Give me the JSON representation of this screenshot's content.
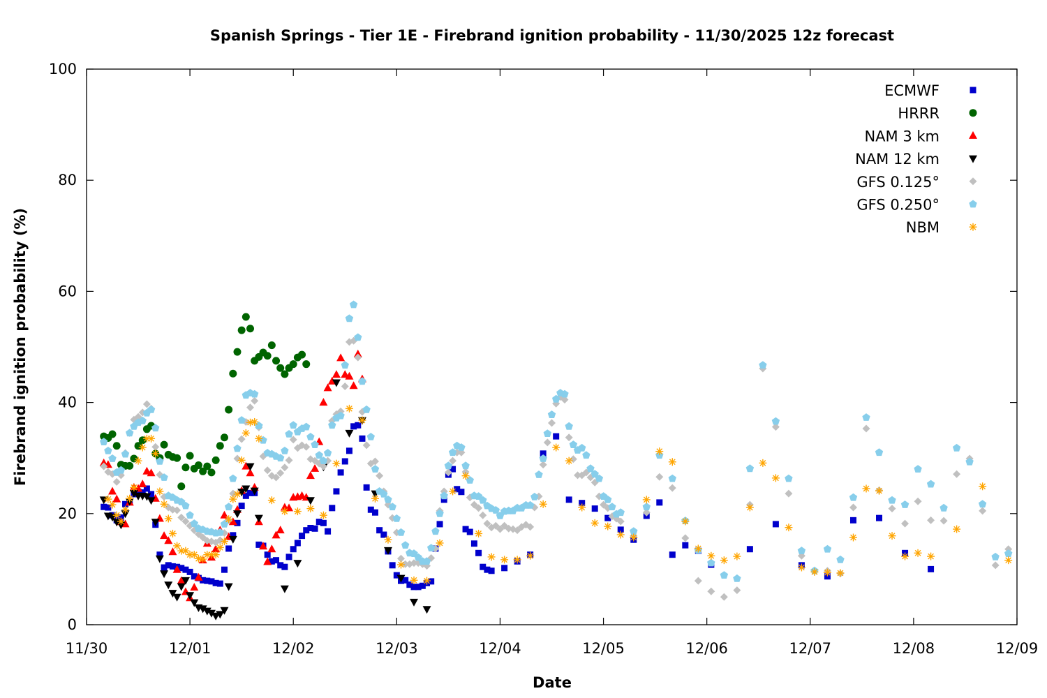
{
  "chart_data": {
    "type": "scatter",
    "title": "Spanish Springs - Tier 1E - Firebrand ignition probability - 11/30/2025 12z forecast",
    "xlabel": "Date",
    "ylabel": "Firebrand ignition probability (%)",
    "xlim": [
      "11/30 00:00",
      "12/09 00:00"
    ],
    "ylim": [
      0,
      100
    ],
    "x_ticks": [
      "11/30",
      "12/01",
      "12/02",
      "12/03",
      "12/04",
      "12/05",
      "12/06",
      "12/07",
      "12/08",
      "12/09"
    ],
    "y_ticks": [
      0,
      20,
      40,
      60,
      80,
      100
    ],
    "grid": false,
    "legend_placement": "top-right",
    "series": [
      {
        "name": "ECMWF",
        "marker": "square",
        "color": "#0000cc",
        "segments": [
          {
            "start": "11/30 04:00",
            "step_hours": 1,
            "values": [
              21.2,
              21.1,
              19.7,
              18.8,
              19.3,
              21.7,
              22.2,
              23.5,
              23.9,
              23.8,
              24.5,
              23.5,
              18.0,
              12.6,
              10.3,
              10.7,
              10.5,
              10.4,
              10.2,
              9.9,
              9.5,
              8.7,
              8.4,
              8.0,
              7.9,
              7.8,
              7.5,
              7.4,
              9.9,
              13.7,
              16.1,
              18.3,
              21.4,
              23.2,
              23.7,
              23.7,
              14.4,
              14.2,
              12.6,
              11.4,
              11.6,
              10.7,
              10.4,
              12.2,
              13.6,
              14.7,
              16.0,
              17.0,
              17.4,
              17.3,
              18.5,
              18.3,
              16.8,
              21.0,
              24.0,
              27.4,
              29.4,
              31.3,
              35.7,
              35.9,
              33.5,
              24.7,
              20.7,
              20.2,
              17.0,
              16.2,
              13.2,
              10.7,
              8.9,
              7.9,
              8.0,
              7.2,
              6.8,
              6.8,
              7.0,
              7.5,
              7.8,
              13.7,
              18.1,
              22.5,
              27.0,
              28.0,
              24.4,
              23.9,
              17.2,
              16.7,
              14.6,
              12.9,
              10.4,
              9.9,
              9.7
            ]
          },
          {
            "start": "12/04 01:00",
            "step_hours": 3,
            "values": [
              10.2,
              11.4,
              12.6,
              30.8,
              33.9,
              22.5,
              21.9,
              20.9,
              19.2,
              17.1,
              15.3,
              19.6,
              22.0,
              12.6,
              14.3,
              13.3,
              10.8
            ]
          },
          {
            "start": "12/06 10:00",
            "step_hours": 6,
            "values": [
              13.6,
              18.1,
              10.7,
              8.7,
              18.8,
              19.2,
              12.9,
              10.0
            ]
          }
        ]
      },
      {
        "name": "HRRR",
        "marker": "circle",
        "color": "#006400",
        "segments": [
          {
            "start": "11/30 04:00",
            "step_hours": 1,
            "values": [
              33.9,
              33.6,
              34.3,
              32.2,
              28.8,
              28.6,
              28.6,
              29.9,
              32.2,
              33.2,
              35.2,
              35.8,
              30.8,
              30.0,
              32.4,
              30.6,
              30.2,
              30.0,
              24.9,
              28.3,
              30.4,
              28.1,
              28.7,
              27.6,
              28.5,
              27.4,
              29.6,
              32.2,
              33.7,
              38.7,
              45.2,
              49.1,
              53.0,
              55.4,
              53.3,
              47.5,
              48.2,
              49.0,
              48.4,
              50.3,
              47.5,
              46.2,
              45.1,
              46.2,
              46.9,
              48.1,
              48.6,
              46.9
            ]
          }
        ]
      },
      {
        "name": "NAM 3 km",
        "marker": "triangle-up",
        "color": "#ff0000",
        "segments": [
          {
            "start": "11/30 04:00",
            "step_hours": 1,
            "values": [
              29.1,
              28.8,
              24.0,
              22.6,
              18.5,
              18.1,
              22.0,
              24.7,
              24.5,
              25.3,
              27.6,
              27.3,
              22.7,
              19.1,
              16.0,
              15.1,
              13.1,
              9.9,
              7.9,
              5.9,
              4.8,
              6.7,
              8.5,
              11.6,
              14.6,
              12.1,
              13.6,
              17.0,
              19.7,
              15.8,
              18.5,
              20.7,
              24.1,
              28.5,
              27.3,
              24.7,
              18.5,
              14.1,
              11.3,
              13.6,
              16.1,
              17.0,
              21.1,
              21.0,
              22.9,
              23.0,
              23.2,
              22.9,
              26.8,
              28.1,
              32.9,
              40.0,
              42.6,
              43.8,
              45.0,
              48.0,
              45.0,
              44.7,
              43.0,
              48.7,
              44.2
            ]
          }
        ]
      },
      {
        "name": "NAM 12 km",
        "marker": "triangle-down",
        "color": "#000000",
        "segments": [
          {
            "start": "11/30 04:00",
            "step_hours": 1,
            "values": [
              22.5,
              19.6,
              19.4,
              18.5,
              18.0,
              20.0,
              22.2,
              23.7,
              23.2,
              23.2,
              23.1,
              22.4,
              18.5,
              11.9,
              9.2,
              7.2,
              5.7,
              5.0,
              6.9,
              8.0,
              5.3,
              4.0,
              3.1,
              2.9,
              2.5,
              2.1,
              1.6,
              1.9,
              2.6,
              6.9,
              15.4,
              20.0,
              23.9,
              24.5,
              28.5,
              24.1,
              19.2
            ]
          },
          {
            "start": "12/01 19:00",
            "step_hours": 3,
            "values": [
              null,
              6.5,
              11.1,
              22.4,
              28.4,
              43.6,
              34.5,
              36.8,
              23.6,
              13.4,
              8.4,
              4.1,
              2.8
            ]
          }
        ]
      },
      {
        "name": "GFS 0.125°",
        "marker": "diamond",
        "color": "#c0c0c0",
        "segments": [
          {
            "start": "11/30 04:00",
            "step_hours": 1,
            "values": [
              28.5,
              27.5,
              27.1,
              25.7,
              26.9,
              30.9,
              34.5,
              36.9,
              37.4,
              38.2,
              39.7,
              38.9,
              32.0,
              27.0,
              23.0,
              21.1,
              20.7,
              20.6,
              19.3,
              18.6,
              17.8,
              17.0,
              16.3,
              15.7,
              15.1,
              15.0,
              14.8,
              15.2,
              16.5,
              18.8,
              23.6,
              29.9,
              33.4,
              36.5,
              39.1,
              40.3,
              35.5,
              30.3,
              27.8,
              26.8,
              26.5,
              27.3,
              28.3,
              29.6,
              33.3,
              31.8,
              32.3,
              32.0,
              29.8,
              29.5,
              29.0,
              28.5,
              29.5,
              36.7,
              37.9,
              38.4,
              42.9,
              50.9,
              51.1,
              48.1,
              38.3,
              32.3,
              29.0,
              29.4,
              26.8,
              24.0,
              21.6,
              19.2,
              16.6,
              11.9,
              10.9,
              10.9,
              11.1,
              11.1,
              10.9,
              10.6,
              12.0,
              13.7,
              20.5,
              24.0,
              27.4,
              29.5,
              31.0,
              31.0,
              27.5,
              22.9,
              21.6,
              21.0,
              19.7,
              18.2,
              17.5,
              17.8,
              17.2,
              17.8,
              17.3,
              17.2,
              17.0,
              17.6,
              18.0,
              17.6,
              21.1,
              23.1,
              28.8,
              32.8,
              36.3,
              39.8,
              41.0,
              40.5,
              33.7,
              29.8,
              26.9,
              26.9,
              27.4,
              26.5,
              25.6,
              23.1,
              21.6,
              21.0,
              19.5,
              19.1,
              18.6
            ]
          },
          {
            "start": "12/05 07:00",
            "step_hours": 3,
            "values": [
              16.0,
              20.2,
              26.6,
              24.6,
              15.6,
              7.9,
              6.0,
              5.0,
              6.2,
              21.6,
              46.1,
              35.6,
              23.6,
              12.4,
              9.7,
              9.7,
              9.2,
              21.1,
              35.3,
              24.2,
              20.9,
              18.2,
              22.2,
              18.8,
              18.7,
              27.1,
              29.9,
              20.5,
              10.7,
              13.6
            ]
          }
        ]
      },
      {
        "name": "GFS 0.250°",
        "marker": "pentagon",
        "color": "#87ceeb",
        "segments": [
          {
            "start": "11/30 04:00",
            "step_hours": 1,
            "values": [
              32.9,
              31.3,
              29.9,
              27.4,
              27.8,
              30.7,
              34.5,
              35.7,
              36.4,
              36.7,
              38.1,
              38.7,
              35.4,
              29.4,
              26.5,
              23.2,
              22.9,
              22.4,
              22.1,
              21.4,
              19.7,
              18.2,
              17.3,
              17.1,
              16.8,
              16.7,
              16.5,
              16.6,
              18.1,
              21.2,
              26.3,
              31.7,
              36.8,
              41.3,
              41.7,
              41.5,
              35.8,
              33.2,
              30.9,
              30.7,
              30.3,
              30.0,
              31.3,
              34.3,
              35.9,
              34.7,
              35.3,
              35.6,
              33.8,
              32.4,
              30.5,
              29.5,
              30.9,
              35.9,
              37.2,
              37.6,
              46.7,
              55.1,
              57.6,
              51.7,
              43.8,
              38.7,
              33.8,
              28.0,
              24.0,
              23.5,
              22.5,
              21.2,
              19.1,
              16.6,
              14.3,
              12.9,
              12.8,
              12.1,
              11.4,
              11.4,
              13.8,
              16.8,
              20.0,
              23.2,
              28.6,
              31.0,
              32.2,
              31.9,
              28.6,
              26.0,
              23.2,
              23.1,
              22.4,
              21.4,
              20.9,
              20.6,
              19.6,
              20.4,
              20.5,
              20.5,
              21.0,
              21.0,
              21.5,
              21.5,
              23.0,
              27.0,
              29.9,
              34.4,
              37.8,
              40.6,
              41.7,
              41.5,
              35.7,
              32.4,
              31.4,
              31.8,
              30.5,
              28.1,
              27.1,
              26.3,
              23.1,
              22.5,
              21.2,
              19.9,
              20.2
            ]
          },
          {
            "start": "12/05 07:00",
            "step_hours": 3,
            "values": [
              16.8,
              21.2,
              30.5,
              26.3,
              18.7,
              13.4,
              11.1,
              8.9,
              8.3,
              28.1,
              46.7,
              36.6,
              26.3,
              13.3,
              9.7,
              13.6,
              11.7,
              22.9,
              37.3,
              31.0,
              22.4,
              21.6,
              28.0,
              25.3,
              21.0,
              31.8,
              29.3,
              21.7,
              12.2,
              12.8
            ]
          }
        ]
      },
      {
        "name": "NBM",
        "marker": "asterisk",
        "color": "#ffa500",
        "segments": [
          {
            "start": "11/30 05:00",
            "step_hours": 1,
            "values": [
              22.6,
              21.6,
              19.7,
              18.6,
              20.7,
              22.7,
              24.7,
              29.5,
              31.9,
              33.5,
              33.5,
              30.8,
              24.0,
              21.7,
              19.1,
              16.4,
              14.2,
              13.3,
              13.3,
              12.6,
              12.6,
              11.9,
              11.8,
              12.6,
              12.6,
              12.6,
              13.9,
              15.0,
              19.0,
              22.6,
              23.5,
              29.6,
              34.5,
              36.4,
              36.5,
              33.5
            ]
          },
          {
            "start": "12/01 19:00",
            "step_hours": 3,
            "values": [
              22.4,
              20.4,
              20.4,
              20.9,
              19.7,
              29.0,
              38.9,
              36.8,
              22.7,
              15.3,
              10.8,
              8.0,
              7.9,
              14.7,
              24.0,
              26.8,
              16.4,
              12.2,
              11.7,
              11.7,
              12.4,
              21.7,
              31.9,
              29.5,
              21.1,
              18.3,
              17.7,
              16.2,
              15.7,
              22.5,
              31.2,
              29.3,
              18.6,
              13.7,
              12.4,
              11.6,
              12.3,
              21.1,
              29.1,
              26.4,
              17.5,
              10.3,
              9.5,
              9.4,
              9.3,
              15.7,
              24.5,
              24.1,
              16.0,
              12.3,
              12.9,
              12.3,
              null,
              17.2,
              null,
              24.9,
              null,
              11.6
            ]
          }
        ]
      }
    ]
  }
}
